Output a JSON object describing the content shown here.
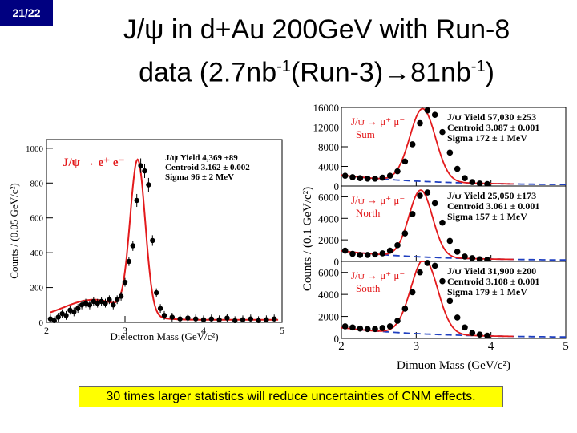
{
  "slide": {
    "number": "21/22",
    "title_line1": "J/ψ in d+Au 200GeV with Run-8",
    "title_line2_a": "data (2.7nb",
    "title_line2_sup1": "-1",
    "title_line2_b": "(Run-3)",
    "title_line2_arrow": "→",
    "title_line2_c": "81nb",
    "title_line2_sup2": "-1",
    "title_line2_d": ")",
    "footnote": "30 times larger statistics will reduce uncertainties of CNM effects."
  },
  "chart_data": [
    {
      "type": "scatter",
      "title": "J/ψ → e⁺ e⁻",
      "xlabel": "Dielectron Mass (GeV/c²)",
      "ylabel": "Counts / (0.05 GeV/c²)",
      "xlim": [
        2,
        5
      ],
      "ylim": [
        0,
        1050
      ],
      "xticks": [
        "2",
        "3",
        "4",
        "5"
      ],
      "yticks": [
        "0",
        "200",
        "400",
        "600",
        "800",
        "1000"
      ],
      "legend": {
        "yield": "J/ψ Yield   4,369 ±89",
        "centroid": "Centroid    3.162 ± 0.002",
        "sigma": "Sigma        96 ± 2 MeV"
      },
      "x": [
        2.05,
        2.1,
        2.15,
        2.2,
        2.25,
        2.3,
        2.35,
        2.4,
        2.45,
        2.5,
        2.55,
        2.6,
        2.65,
        2.7,
        2.75,
        2.8,
        2.85,
        2.9,
        2.95,
        3.0,
        3.05,
        3.1,
        3.15,
        3.2,
        3.25,
        3.3,
        3.35,
        3.4,
        3.45,
        3.5,
        3.6,
        3.7,
        3.8,
        3.9,
        4.0,
        4.1,
        4.2,
        4.3,
        4.4,
        4.5,
        4.6,
        4.7,
        4.8,
        4.9
      ],
      "y": [
        20,
        10,
        30,
        50,
        40,
        70,
        60,
        80,
        100,
        110,
        100,
        120,
        110,
        120,
        110,
        130,
        100,
        130,
        150,
        230,
        350,
        440,
        700,
        900,
        870,
        790,
        470,
        170,
        80,
        40,
        30,
        20,
        25,
        20,
        15,
        20,
        15,
        25,
        10,
        15,
        20,
        10,
        15,
        20
      ]
    },
    {
      "type": "scatter",
      "title": "J/ψ → μ⁺ μ⁻  Sum / North / South",
      "xlabel": "Dimuon Mass (GeV/c²)",
      "ylabel": "Counts / (0.1 GeV/c²)",
      "xlim": [
        2,
        5
      ],
      "xticks": [
        "2",
        "3",
        "4",
        "5"
      ],
      "panels": [
        {
          "name": "Sum",
          "channel": "J/ψ → μ⁺ μ⁻",
          "ylim": [
            0,
            16000
          ],
          "yticks": [
            "0",
            "4000",
            "8000",
            "12000",
            "16000"
          ],
          "yticks_extra": [
            "2000",
            "6000",
            "10000",
            "14000"
          ],
          "yield": "J/ψ Yield  57,030 ±253",
          "centroid": "Centroid   3.087 ± 0.001",
          "sigma": "Sigma        172 ± 1 MeV",
          "x": [
            2.05,
            2.15,
            2.25,
            2.35,
            2.45,
            2.55,
            2.65,
            2.75,
            2.85,
            2.95,
            3.05,
            3.15,
            3.25,
            3.35,
            3.45,
            3.55,
            3.65,
            3.75,
            3.85,
            3.95
          ],
          "y": [
            2100,
            1800,
            1600,
            1500,
            1500,
            1700,
            2100,
            3000,
            5000,
            8500,
            12800,
            15400,
            14500,
            11000,
            6800,
            3500,
            1600,
            800,
            500,
            400
          ]
        },
        {
          "name": "North",
          "channel": "J/ψ → μ⁺ μ⁻",
          "ylim": [
            0,
            7000
          ],
          "yticks": [
            "0",
            "2000",
            "4000",
            "6000"
          ],
          "yield": "J/ψ Yield  25,050 ±173",
          "centroid": "Centroid   3.061 ± 0.001",
          "sigma": "Sigma        157 ± 1 MeV",
          "x": [
            2.05,
            2.15,
            2.25,
            2.35,
            2.45,
            2.55,
            2.65,
            2.75,
            2.85,
            2.95,
            3.05,
            3.15,
            3.25,
            3.35,
            3.45,
            3.55,
            3.65,
            3.75,
            3.85,
            3.95
          ],
          "y": [
            1000,
            700,
            600,
            600,
            650,
            750,
            1000,
            1500,
            2600,
            4400,
            6100,
            6400,
            5400,
            3600,
            1900,
            900,
            450,
            300,
            200,
            150
          ]
        },
        {
          "name": "South",
          "channel": "J/ψ → μ⁺ μ⁻",
          "ylim": [
            0,
            7000
          ],
          "yticks": [
            "0",
            "2000",
            "4000",
            "6000"
          ],
          "yield": "J/ψ Yield  31,900 ±200",
          "centroid": "Centroid   3.108 ± 0.001",
          "sigma": "Sigma        179 ± 1 MeV",
          "x": [
            2.05,
            2.15,
            2.25,
            2.35,
            2.45,
            2.55,
            2.65,
            2.75,
            2.85,
            2.95,
            3.05,
            3.15,
            3.25,
            3.35,
            3.45,
            3.55,
            3.65,
            3.75,
            3.85,
            3.95
          ],
          "y": [
            1100,
            1000,
            900,
            850,
            850,
            950,
            1100,
            1600,
            2700,
            4200,
            6000,
            7000,
            6600,
            5200,
            3400,
            1900,
            1000,
            500,
            350,
            250
          ]
        }
      ]
    }
  ]
}
